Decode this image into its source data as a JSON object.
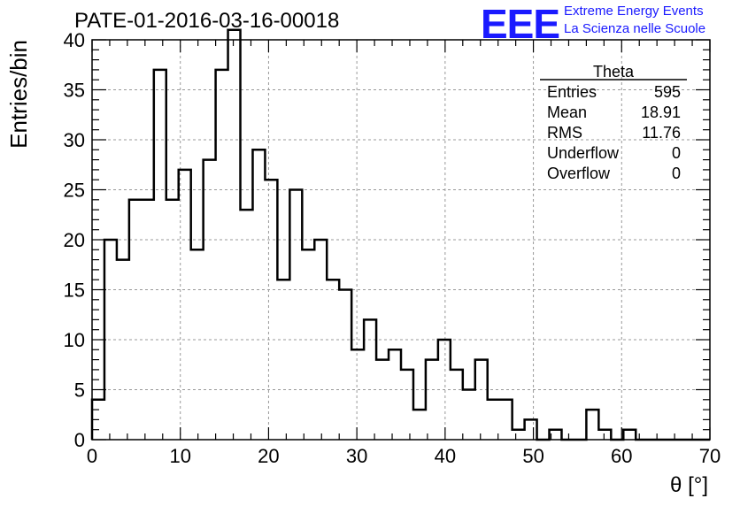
{
  "header": {
    "title": "PATE-01-2016-03-16-00018",
    "logo_mark": "EEE",
    "logo_line1": "Extreme Energy Events",
    "logo_line2": "La Scienza nelle Scuole"
  },
  "stats_box": {
    "name": "Theta",
    "rows": [
      {
        "label": "Entries",
        "value": "595"
      },
      {
        "label": "Mean",
        "value": "18.91"
      },
      {
        "label": "RMS",
        "value": "11.76"
      },
      {
        "label": "Underflow",
        "value": "0"
      },
      {
        "label": "Overflow",
        "value": "0"
      }
    ]
  },
  "colors": {
    "logo": "#1a1aff",
    "line": "#000000",
    "grid": "#999999"
  },
  "chart_data": {
    "type": "histogram",
    "xlabel": "θ [°]",
    "ylabel": "Entries/bin",
    "xlim": [
      0,
      70
    ],
    "ylim": [
      0,
      40
    ],
    "grid": true,
    "xticks": [
      0,
      10,
      20,
      30,
      40,
      50,
      60,
      70
    ],
    "yticks": [
      0,
      5,
      10,
      15,
      20,
      25,
      30,
      35,
      40
    ],
    "bin_width": 1.4,
    "bin_edges_start": 0,
    "values": [
      4,
      20,
      18,
      24,
      24,
      37,
      24,
      27,
      19,
      28,
      37,
      41,
      23,
      29,
      26,
      16,
      25,
      19,
      20,
      16,
      15,
      9,
      12,
      8,
      9,
      7,
      3,
      8,
      10,
      7,
      5,
      8,
      4,
      4,
      1,
      2,
      0,
      1,
      0,
      0,
      3,
      1,
      0,
      1,
      0,
      0,
      0,
      0,
      0,
      0
    ]
  }
}
